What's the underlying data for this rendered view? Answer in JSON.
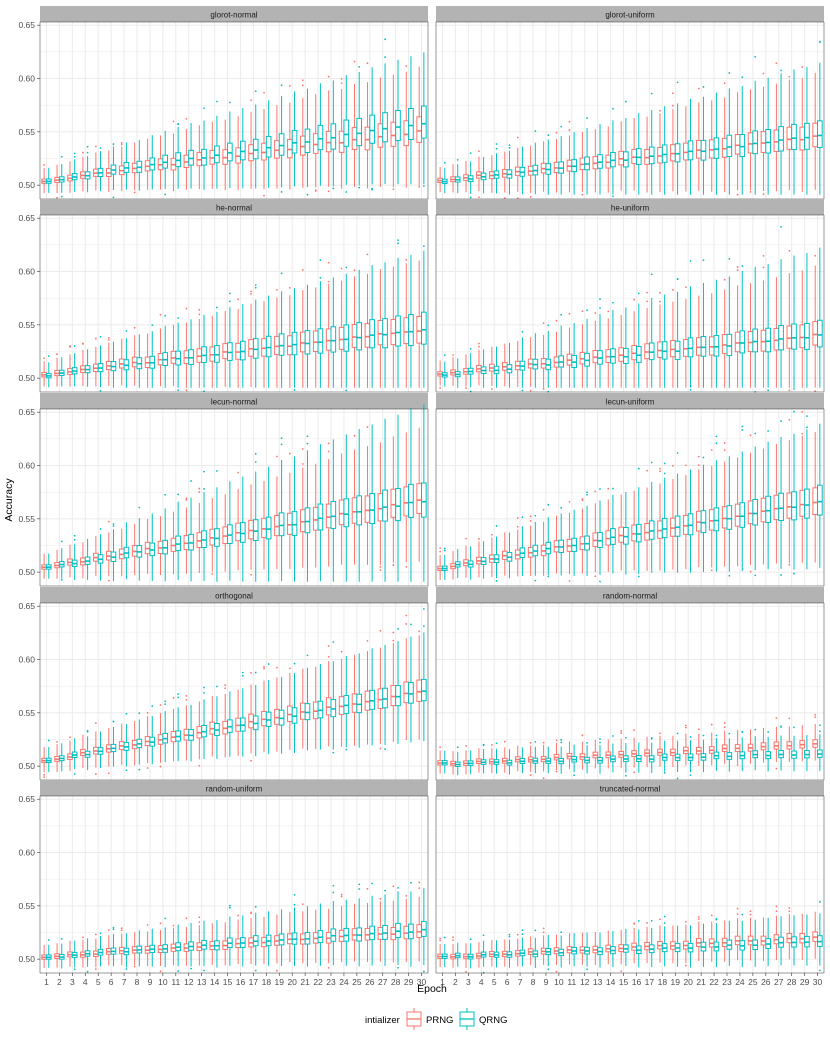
{
  "chart_data": {
    "type": "boxplot",
    "xlabel": "Epoch",
    "ylabel": "Accuracy",
    "ylim": [
      0.487,
      0.653
    ],
    "y_ticks": [
      "0.50",
      "0.55",
      "0.60",
      "0.65"
    ],
    "y_tick_values": [
      0.5,
      0.55,
      0.6,
      0.65
    ],
    "x_categories": [
      "1",
      "2",
      "3",
      "4",
      "5",
      "6",
      "7",
      "8",
      "9",
      "10",
      "11",
      "12",
      "13",
      "14",
      "15",
      "16",
      "17",
      "18",
      "19",
      "20",
      "21",
      "22",
      "23",
      "24",
      "25",
      "26",
      "27",
      "28",
      "29",
      "30"
    ],
    "grid": true,
    "legend": {
      "title": "intializer",
      "position": "bottom",
      "entries": [
        {
          "label": "PRNG",
          "color": "#F8766D"
        },
        {
          "label": "QRNG",
          "color": "#00BFC4"
        }
      ]
    },
    "colors": {
      "PRNG": "#F8766D",
      "QRNG": "#00BFC4"
    },
    "panels": [
      {
        "title": "glorot-normal",
        "series": [
          {
            "name": "PRNG",
            "median_start": 0.504,
            "median_end": 0.55,
            "iqr_start": 0.004,
            "iqr_end": 0.024,
            "whisker_start": 0.01,
            "whisker_end": 0.045
          },
          {
            "name": "QRNG",
            "median_start": 0.504,
            "median_end": 0.558,
            "iqr_start": 0.004,
            "iqr_end": 0.03,
            "whisker_start": 0.01,
            "whisker_end": 0.048
          }
        ]
      },
      {
        "title": "glorot-uniform",
        "series": [
          {
            "name": "PRNG",
            "median_start": 0.504,
            "median_end": 0.545,
            "iqr_start": 0.004,
            "iqr_end": 0.022,
            "whisker_start": 0.01,
            "whisker_end": 0.045
          },
          {
            "name": "QRNG",
            "median_start": 0.503,
            "median_end": 0.546,
            "iqr_start": 0.004,
            "iqr_end": 0.025,
            "whisker_start": 0.01,
            "whisker_end": 0.052
          }
        ]
      },
      {
        "title": "he-normal",
        "series": [
          {
            "name": "PRNG",
            "median_start": 0.504,
            "median_end": 0.545,
            "iqr_start": 0.004,
            "iqr_end": 0.025,
            "whisker_start": 0.01,
            "whisker_end": 0.05
          },
          {
            "name": "QRNG",
            "median_start": 0.503,
            "median_end": 0.546,
            "iqr_start": 0.004,
            "iqr_end": 0.03,
            "whisker_start": 0.01,
            "whisker_end": 0.055
          }
        ]
      },
      {
        "title": "he-uniform",
        "series": [
          {
            "name": "PRNG",
            "median_start": 0.504,
            "median_end": 0.54,
            "iqr_start": 0.004,
            "iqr_end": 0.022,
            "whisker_start": 0.01,
            "whisker_end": 0.05
          },
          {
            "name": "QRNG",
            "median_start": 0.503,
            "median_end": 0.54,
            "iqr_start": 0.004,
            "iqr_end": 0.025,
            "whisker_start": 0.01,
            "whisker_end": 0.065
          }
        ]
      },
      {
        "title": "lecun-normal",
        "series": [
          {
            "name": "PRNG",
            "median_start": 0.504,
            "median_end": 0.567,
            "iqr_start": 0.004,
            "iqr_end": 0.028,
            "whisker_start": 0.01,
            "whisker_end": 0.05
          },
          {
            "name": "QRNG",
            "median_start": 0.504,
            "median_end": 0.567,
            "iqr_start": 0.004,
            "iqr_end": 0.032,
            "whisker_start": 0.01,
            "whisker_end": 0.07
          }
        ]
      },
      {
        "title": "lecun-uniform",
        "series": [
          {
            "name": "PRNG",
            "median_start": 0.504,
            "median_end": 0.565,
            "iqr_start": 0.004,
            "iqr_end": 0.025,
            "whisker_start": 0.01,
            "whisker_end": 0.05
          },
          {
            "name": "QRNG",
            "median_start": 0.504,
            "median_end": 0.566,
            "iqr_start": 0.004,
            "iqr_end": 0.028,
            "whisker_start": 0.01,
            "whisker_end": 0.055
          }
        ]
      },
      {
        "title": "orthogonal",
        "series": [
          {
            "name": "PRNG",
            "median_start": 0.505,
            "median_end": 0.57,
            "iqr_start": 0.004,
            "iqr_end": 0.02,
            "whisker_start": 0.01,
            "whisker_end": 0.04
          },
          {
            "name": "QRNG",
            "median_start": 0.505,
            "median_end": 0.57,
            "iqr_start": 0.004,
            "iqr_end": 0.02,
            "whisker_start": 0.01,
            "whisker_end": 0.042
          }
        ]
      },
      {
        "title": "random-normal",
        "series": [
          {
            "name": "PRNG",
            "median_start": 0.502,
            "median_end": 0.52,
            "iqr_start": 0.004,
            "iqr_end": 0.007,
            "whisker_start": 0.009,
            "whisker_end": 0.014
          },
          {
            "name": "QRNG",
            "median_start": 0.502,
            "median_end": 0.512,
            "iqr_start": 0.004,
            "iqr_end": 0.007,
            "whisker_start": 0.009,
            "whisker_end": 0.014
          }
        ]
      },
      {
        "title": "random-uniform",
        "series": [
          {
            "name": "PRNG",
            "median_start": 0.502,
            "median_end": 0.526,
            "iqr_start": 0.004,
            "iqr_end": 0.012,
            "whisker_start": 0.009,
            "whisker_end": 0.025
          },
          {
            "name": "QRNG",
            "median_start": 0.502,
            "median_end": 0.527,
            "iqr_start": 0.004,
            "iqr_end": 0.014,
            "whisker_start": 0.009,
            "whisker_end": 0.03
          }
        ]
      },
      {
        "title": "truncated-normal",
        "series": [
          {
            "name": "PRNG",
            "median_start": 0.502,
            "median_end": 0.52,
            "iqr_start": 0.004,
            "iqr_end": 0.009,
            "whisker_start": 0.009,
            "whisker_end": 0.018
          },
          {
            "name": "QRNG",
            "median_start": 0.502,
            "median_end": 0.516,
            "iqr_start": 0.004,
            "iqr_end": 0.01,
            "whisker_start": 0.009,
            "whisker_end": 0.02
          }
        ]
      }
    ]
  }
}
